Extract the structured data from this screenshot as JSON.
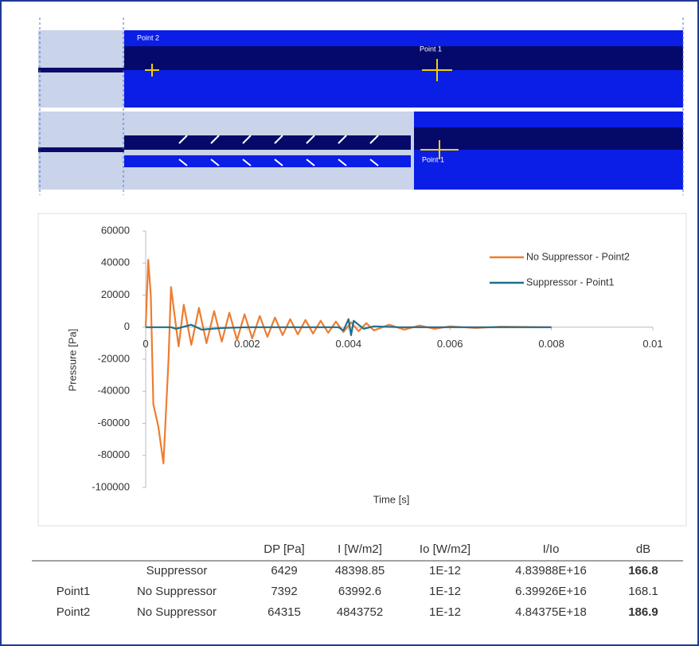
{
  "diagram": {
    "labels": [
      "Point 2",
      "Point 1",
      "Point 1"
    ]
  },
  "chart_data": {
    "type": "line",
    "x_label": "Time [s]",
    "y_label": "Pressure [Pa]",
    "xlim": [
      0,
      0.01
    ],
    "xticks": [
      0,
      0.002,
      0.004,
      0.006,
      0.008,
      0.01
    ],
    "ylim": [
      -100000,
      60000
    ],
    "yticks": [
      -100000,
      -80000,
      -60000,
      -40000,
      -20000,
      0,
      20000,
      40000,
      60000
    ],
    "legend": "upper right",
    "series": [
      {
        "name": "No Suppressor - Point2",
        "color": "#ed7d31",
        "x": [
          0,
          5e-05,
          0.0001,
          0.00015,
          0.00025,
          0.00035,
          0.00045,
          0.0005,
          0.0006,
          0.00065,
          0.00075,
          0.0009,
          0.00105,
          0.0012,
          0.00135,
          0.0015,
          0.00165,
          0.0018,
          0.00195,
          0.0021,
          0.00225,
          0.0024,
          0.00255,
          0.0027,
          0.00285,
          0.003,
          0.00315,
          0.0033,
          0.00345,
          0.0036,
          0.00375,
          0.0039,
          0.00405,
          0.0042,
          0.00435,
          0.0045,
          0.0048,
          0.0051,
          0.0054,
          0.0057,
          0.006,
          0.0065,
          0.007,
          0.008
        ],
        "values": [
          0,
          42000,
          20000,
          -48000,
          -62000,
          -85000,
          -20000,
          25000,
          0,
          -12000,
          14000,
          -11000,
          12000,
          -10000,
          10000,
          -9000,
          9000,
          -8000,
          8000,
          -7000,
          7000,
          -6000,
          6000,
          -5000,
          5000,
          -4500,
          4500,
          -4000,
          4000,
          -3500,
          3500,
          -3000,
          3000,
          -2500,
          2500,
          -2000,
          1500,
          -1500,
          1000,
          -1000,
          500,
          -500,
          300,
          0
        ]
      },
      {
        "name": "Suppressor - Point1",
        "color": "#1f6f8b",
        "x": [
          0,
          0.0005,
          0.0006,
          0.0009,
          0.0011,
          0.0015,
          0.002,
          0.0038,
          0.0039,
          0.004,
          0.00405,
          0.0041,
          0.0043,
          0.0045,
          0.005,
          0.008
        ],
        "values": [
          0,
          0,
          -1000,
          1500,
          -1500,
          -500,
          0,
          0,
          -2000,
          5000,
          -5000,
          4000,
          -1000,
          500,
          0,
          0
        ]
      }
    ]
  },
  "table": {
    "columns": [
      "DP [Pa]",
      "I [W/m2]",
      "Io [W/m2]",
      "I/Io",
      "dB"
    ],
    "rows": [
      {
        "case": "Suppressor",
        "values": [
          6429,
          48398.85,
          "1E-12",
          "4.83988E+16",
          166.8
        ],
        "bold_last": true
      },
      {
        "point": "Point1",
        "case": "No Suppressor",
        "values": [
          7392,
          63992.6,
          "1E-12",
          "6.39926E+16",
          168.1
        ],
        "bold_last": false
      },
      {
        "point": "Point2",
        "case": "No Suppressor",
        "values": [
          64315,
          4843752,
          "1E-12",
          "4.84375E+18",
          186.9
        ],
        "bold_last": true
      }
    ]
  }
}
